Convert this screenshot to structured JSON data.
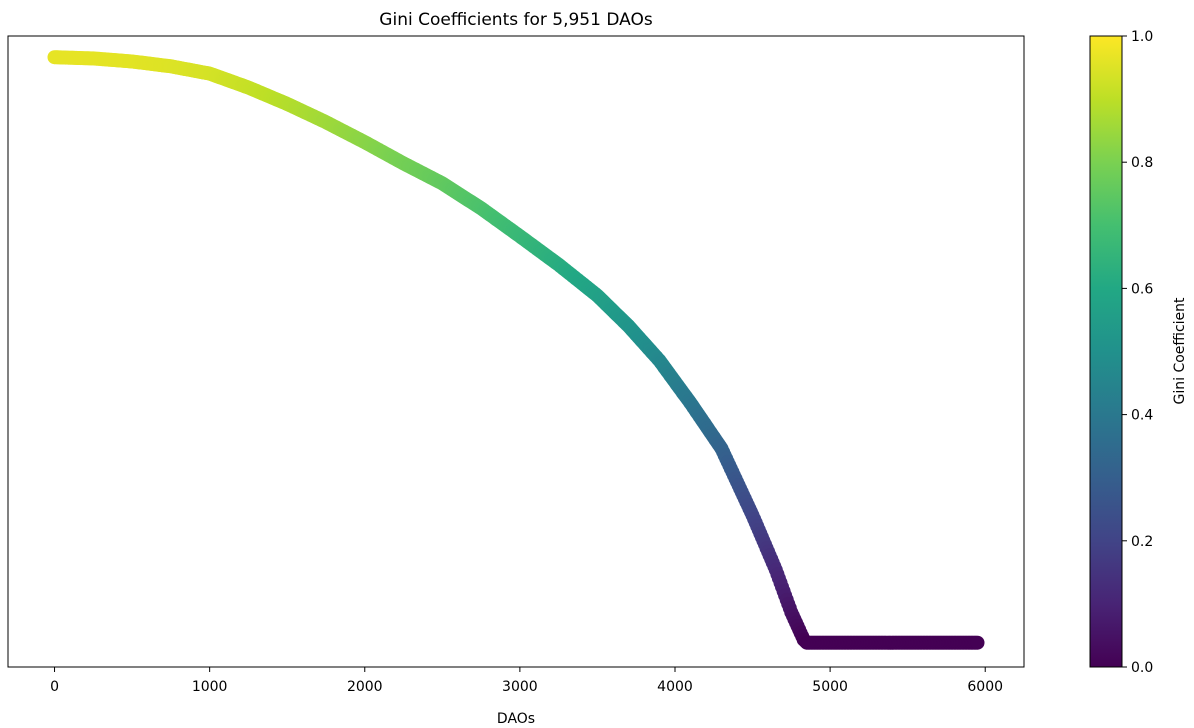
{
  "chart_data": {
    "type": "scatter",
    "title": "Gini Coefficients for 5,951 DAOs",
    "xlabel": "DAOs",
    "ylabel": "",
    "xlim": [
      -300,
      6250
    ],
    "ylim": [
      -0.04,
      1.0
    ],
    "x_ticks": [
      0,
      1000,
      2000,
      3000,
      4000,
      5000,
      6000
    ],
    "y_ticks": [],
    "grid": false,
    "colormap": "viridis",
    "colorbar": {
      "label": "Gini Coefficient",
      "range": [
        0.0,
        1.0
      ],
      "ticks": [
        "0.0",
        "0.2",
        "0.4",
        "0.6",
        "0.8",
        "1.0"
      ]
    },
    "n_points": 5951,
    "series": [
      {
        "x": [
          0,
          250,
          500,
          750,
          1000,
          1250,
          1500,
          1750,
          2000,
          2250,
          2500,
          2750,
          3000,
          3250,
          3500,
          3700,
          3900,
          4100,
          4300,
          4500,
          4650,
          4750,
          4830,
          4850,
          5000,
          5500,
          5950
        ],
        "y": [
          0.965,
          0.963,
          0.958,
          0.95,
          0.938,
          0.915,
          0.888,
          0.858,
          0.825,
          0.79,
          0.757,
          0.716,
          0.67,
          0.623,
          0.572,
          0.522,
          0.465,
          0.395,
          0.32,
          0.21,
          0.12,
          0.05,
          0.005,
          0.0,
          0.0,
          0.0,
          0.0
        ]
      }
    ]
  }
}
